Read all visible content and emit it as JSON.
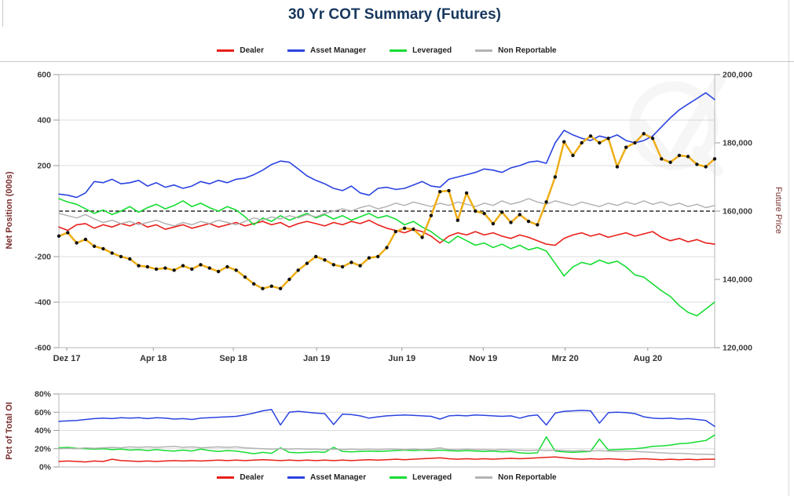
{
  "page": {
    "title": "30 Yr COT Summary (Futures)"
  },
  "colors": {
    "dealer": "#e8201a",
    "asset_manager": "#2b44e0",
    "leveraged": "#16dd33",
    "non_reportable": "#b3b3b3",
    "future_price": "#eeae17",
    "marker": "#111111",
    "title": "#17375e",
    "axis_label": "#7a2e2e",
    "tick_label": "#3c3c3c",
    "grid": "#dcdcdc",
    "zero_line": "#000000",
    "border": "#b7b7b7",
    "watermark": "#888888"
  },
  "icons": {
    "watermark": "q-checkmark-watermark"
  },
  "legend": {
    "items": [
      {
        "label": "Dealer",
        "color": "dealer"
      },
      {
        "label": "Asset Manager",
        "color": "asset_manager"
      },
      {
        "label": "Leveraged",
        "color": "leveraged"
      },
      {
        "label": "Non Reportable",
        "color": "non_reportable"
      }
    ]
  },
  "chart_data": [
    {
      "type": "line",
      "title": "30 Yr COT Summary (Futures)",
      "ylabel_left": "Net Position (000s)",
      "ylabel_right": "Future Price",
      "ylim_left": [
        -600,
        600
      ],
      "ylim_right": [
        120000,
        200000
      ],
      "grid": "horizontal",
      "gridlines": [
        400,
        200,
        -200,
        -400
      ],
      "zero_line_at": 0,
      "yticks_left": [
        {
          "label": "600",
          "v": 600
        },
        {
          "label": "400",
          "v": 400
        },
        {
          "label": "200",
          "v": 200
        },
        {
          "label": "-200",
          "v": -200
        },
        {
          "label": "-400",
          "v": -400
        },
        {
          "label": "-600",
          "v": -600
        }
      ],
      "yticks_right": [
        {
          "label": "200,000",
          "v": 200000
        },
        {
          "label": "180,000",
          "v": 180000
        },
        {
          "label": "160,000",
          "v": 160000
        },
        {
          "label": "140,000",
          "v": 140000
        },
        {
          "label": "120,000",
          "v": 120000
        }
      ],
      "xticks": [
        {
          "label": "Dez 17",
          "f": 0.012
        },
        {
          "label": "Apr 18",
          "f": 0.144
        },
        {
          "label": "Sep 18",
          "f": 0.266
        },
        {
          "label": "Jan 19",
          "f": 0.393
        },
        {
          "label": "Jun 19",
          "f": 0.523
        },
        {
          "label": "Nov 19",
          "f": 0.647
        },
        {
          "label": "Mrz 20",
          "f": 0.772
        },
        {
          "label": "Aug 20",
          "f": 0.898
        }
      ],
      "series": [
        {
          "name": "Dealer",
          "color": "dealer",
          "axis": "left",
          "width": 1.6,
          "values": [
            -70,
            -85,
            -60,
            -55,
            -75,
            -60,
            -70,
            -55,
            -65,
            -50,
            -70,
            -60,
            -80,
            -70,
            -60,
            -75,
            -65,
            -55,
            -70,
            -60,
            -50,
            -65,
            -55,
            -45,
            -60,
            -50,
            -70,
            -55,
            -45,
            -55,
            -65,
            -50,
            -60,
            -45,
            -55,
            -40,
            -60,
            -75,
            -85,
            -95,
            -80,
            -90,
            -110,
            -140,
            -110,
            -95,
            -105,
            -90,
            -105,
            -95,
            -110,
            -120,
            -105,
            -115,
            -130,
            -145,
            -150,
            -120,
            -105,
            -95,
            -110,
            -100,
            -115,
            -105,
            -95,
            -110,
            -100,
            -90,
            -115,
            -130,
            -120,
            -135,
            -125,
            -140,
            -145
          ]
        },
        {
          "name": "Asset Manager",
          "color": "asset_manager",
          "axis": "left",
          "width": 1.6,
          "values": [
            75,
            70,
            60,
            80,
            130,
            125,
            140,
            120,
            125,
            135,
            110,
            125,
            105,
            115,
            100,
            110,
            130,
            120,
            135,
            125,
            140,
            145,
            160,
            180,
            205,
            220,
            215,
            185,
            155,
            135,
            120,
            100,
            90,
            110,
            80,
            70,
            100,
            105,
            95,
            100,
            115,
            130,
            110,
            105,
            140,
            150,
            160,
            170,
            185,
            180,
            170,
            190,
            200,
            215,
            220,
            210,
            300,
            355,
            335,
            320,
            310,
            330,
            320,
            335,
            310,
            300,
            310,
            330,
            370,
            410,
            445,
            470,
            495,
            520,
            490
          ]
        },
        {
          "name": "Leveraged",
          "color": "leveraged",
          "axis": "left",
          "width": 1.6,
          "values": [
            55,
            40,
            30,
            10,
            -10,
            5,
            -15,
            0,
            20,
            -5,
            15,
            30,
            10,
            25,
            45,
            20,
            35,
            15,
            0,
            20,
            5,
            -25,
            -60,
            -30,
            -45,
            -20,
            -40,
            -25,
            -10,
            -30,
            -15,
            -35,
            -20,
            -40,
            -25,
            -10,
            -30,
            -20,
            -35,
            -60,
            -45,
            -70,
            -90,
            -120,
            -140,
            -110,
            -130,
            -150,
            -140,
            -160,
            -145,
            -165,
            -150,
            -170,
            -160,
            -175,
            -230,
            -285,
            -245,
            -225,
            -235,
            -215,
            -230,
            -220,
            -245,
            -280,
            -290,
            -320,
            -350,
            -375,
            -415,
            -445,
            -460,
            -430,
            -400
          ]
        },
        {
          "name": "Non Reportable",
          "color": "non_reportable",
          "axis": "left",
          "width": 1.5,
          "values": [
            -10,
            -20,
            -30,
            -15,
            -35,
            -50,
            -40,
            -55,
            -45,
            -60,
            -50,
            -40,
            -55,
            -65,
            -50,
            -60,
            -45,
            -55,
            -40,
            -50,
            -60,
            -45,
            -30,
            -40,
            -25,
            -35,
            -20,
            -30,
            -15,
            -25,
            -10,
            0,
            10,
            0,
            15,
            25,
            10,
            20,
            35,
            25,
            40,
            30,
            20,
            35,
            25,
            40,
            30,
            20,
            35,
            25,
            45,
            30,
            40,
            55,
            40,
            30,
            45,
            35,
            25,
            40,
            30,
            20,
            35,
            25,
            40,
            30,
            45,
            30,
            40,
            25,
            35,
            20,
            30,
            15,
            25
          ]
        },
        {
          "name": "Future Price",
          "color": "future_price",
          "axis": "right",
          "width": 2.5,
          "markers": true,
          "values": [
            152700,
            153700,
            150700,
            151700,
            149700,
            149000,
            147700,
            146700,
            146000,
            144000,
            143700,
            143000,
            143300,
            142700,
            144000,
            143000,
            144300,
            143300,
            142300,
            143700,
            142700,
            140700,
            138700,
            137300,
            138000,
            137300,
            140000,
            142700,
            144700,
            146700,
            145700,
            144300,
            143700,
            145000,
            144000,
            146300,
            146700,
            149300,
            154000,
            155000,
            154700,
            152300,
            158700,
            165700,
            166000,
            157300,
            165300,
            160000,
            159300,
            156300,
            159700,
            156700,
            159000,
            157000,
            156000,
            162700,
            170000,
            180300,
            176300,
            180000,
            182000,
            180000,
            181300,
            173000,
            178700,
            180000,
            182700,
            181300,
            175300,
            174300,
            176300,
            176000,
            173700,
            173000,
            175300
          ]
        }
      ]
    },
    {
      "type": "line",
      "ylabel_left": "Pct of Total OI",
      "ylim": [
        0,
        80
      ],
      "grid": "horizontal",
      "gridlines": [
        20,
        40,
        60
      ],
      "yticks": [
        {
          "label": "80%",
          "v": 80
        },
        {
          "label": "60%",
          "v": 60
        },
        {
          "label": "40%",
          "v": 40
        },
        {
          "label": "20%",
          "v": 20
        },
        {
          "label": "0%",
          "v": 0
        }
      ],
      "series": [
        {
          "name": "Dealer",
          "color": "dealer",
          "width": 1.5,
          "values": [
            6,
            6.5,
            6,
            5.5,
            6.5,
            6,
            8.5,
            7,
            6.5,
            6,
            6.5,
            6,
            6.5,
            7,
            6.5,
            7,
            6.5,
            7,
            7.5,
            7,
            7.5,
            7,
            7.5,
            8,
            7.5,
            7,
            7.5,
            7,
            7.5,
            7,
            7.5,
            7,
            7.5,
            7,
            7.5,
            8,
            7.5,
            8,
            8.5,
            8,
            8.5,
            9,
            9.5,
            10,
            9,
            8.5,
            9,
            8.5,
            9,
            8.5,
            9,
            9.5,
            9,
            9.5,
            10,
            10.5,
            11,
            10,
            9,
            8.5,
            9,
            8.5,
            9,
            8.5,
            8,
            8.5,
            9,
            8.5,
            8,
            8.5,
            8,
            8.5,
            8,
            8.5,
            8.5
          ]
        },
        {
          "name": "Asset Manager",
          "color": "asset_manager",
          "width": 1.5,
          "values": [
            50,
            50.5,
            51,
            52,
            53,
            53.5,
            53,
            54,
            53.5,
            54,
            53,
            54,
            53.5,
            52.5,
            53,
            52,
            53.5,
            54,
            54.5,
            55,
            55.5,
            57,
            59,
            61.5,
            63,
            46,
            60,
            61,
            60,
            59,
            58.5,
            46.5,
            58,
            57.5,
            56,
            53.5,
            55,
            56,
            56.5,
            57,
            56.5,
            56,
            55.5,
            52.5,
            56,
            56.5,
            56,
            57,
            56.5,
            56,
            55.5,
            56,
            53.5,
            56,
            57,
            46,
            59,
            61,
            61.5,
            62,
            61.5,
            48,
            59.5,
            60,
            59.5,
            58.5,
            55,
            53.5,
            53,
            53.5,
            52.5,
            53,
            52,
            51,
            44.5
          ]
        },
        {
          "name": "Leveraged",
          "color": "leveraged",
          "width": 1.5,
          "values": [
            21,
            21.5,
            20.5,
            20,
            19.5,
            20,
            19,
            19.5,
            18.5,
            19,
            18,
            19,
            18,
            17.5,
            18.5,
            17.5,
            19.5,
            18,
            17,
            18,
            17.5,
            16,
            14.5,
            16,
            15,
            21,
            16,
            15.5,
            16,
            16.5,
            16,
            21.5,
            17,
            16.5,
            17,
            17.5,
            17,
            17.5,
            18,
            18.5,
            18,
            18.5,
            18,
            18.5,
            18,
            17.5,
            18,
            17.5,
            17,
            17.5,
            16.5,
            17,
            15.5,
            15,
            15.5,
            33,
            17.5,
            16.5,
            16,
            16.5,
            17,
            30.5,
            18.5,
            19,
            19.5,
            20,
            21,
            22.5,
            23,
            24,
            25.5,
            26,
            27.5,
            29,
            35
          ]
        },
        {
          "name": "Non Reportable",
          "color": "non_reportable",
          "width": 1.5,
          "values": [
            20,
            20.5,
            20,
            21,
            20.5,
            21,
            21.5,
            21,
            22,
            21.5,
            22,
            21.5,
            22,
            22.5,
            21.5,
            22,
            21,
            21.5,
            22,
            21.5,
            22,
            21,
            20.5,
            20,
            19.5,
            20,
            19.5,
            20,
            19.5,
            19.5,
            19,
            19.5,
            19,
            19.5,
            19,
            19.5,
            19,
            19.5,
            19.5,
            19,
            19.5,
            19,
            19.5,
            21,
            19,
            19,
            19.5,
            19,
            19,
            18.5,
            19,
            18.5,
            18.5,
            18,
            18.5,
            18,
            18.5,
            18,
            17.5,
            18,
            17.5,
            18,
            17.5,
            17,
            17.5,
            17,
            16.5,
            16,
            15.5,
            15,
            15,
            14.5,
            14,
            14,
            13.5
          ]
        }
      ]
    }
  ]
}
